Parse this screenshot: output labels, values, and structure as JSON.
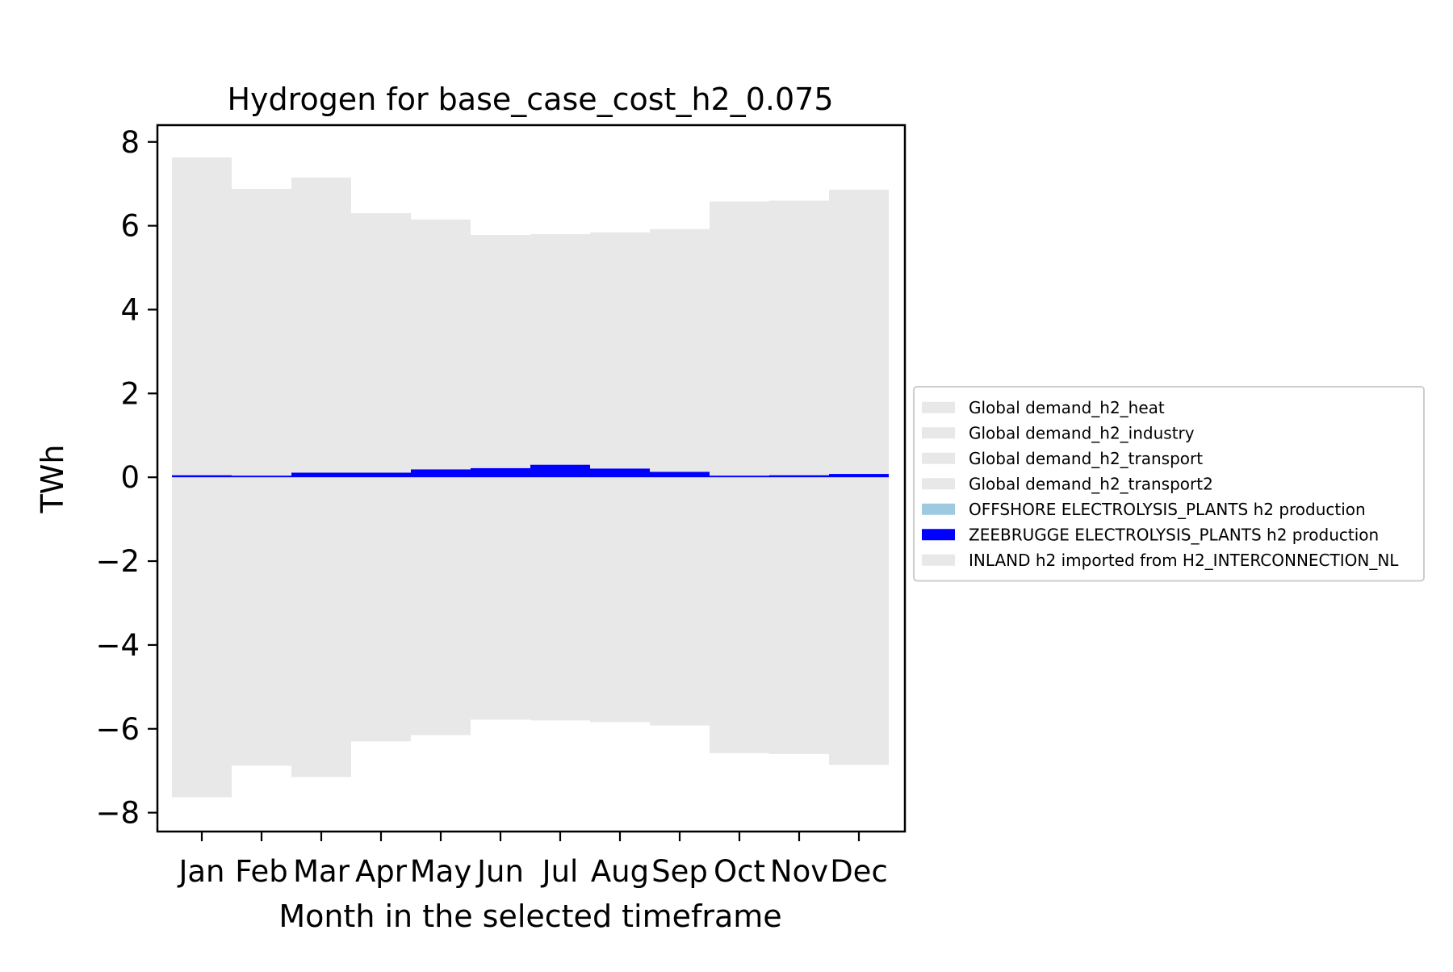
{
  "chart_data": {
    "type": "bar",
    "title": "Hydrogen for base_case_cost_h2_0.075",
    "xlabel": "Month in the selected timeframe",
    "ylabel": "TWh",
    "categories": [
      "Jan",
      "Feb",
      "Mar",
      "Apr",
      "May",
      "Jun",
      "Jul",
      "Aug",
      "Sep",
      "Oct",
      "Nov",
      "Dec"
    ],
    "ylim": [
      -8.45,
      8.4
    ],
    "yticks": [
      8,
      6,
      4,
      2,
      0,
      -2,
      -4,
      -6,
      -8
    ],
    "ytick_labels": [
      "8",
      "6",
      "4",
      "2",
      "0",
      "−2",
      "−4",
      "−6",
      "−8"
    ],
    "grid": false,
    "legend_position": "center-right",
    "series": [
      {
        "name": "Global demand_h2_heat",
        "color": "#e8e8e8",
        "values": [
          0,
          0,
          0,
          0,
          0,
          0,
          0,
          0,
          0,
          0,
          0,
          0
        ]
      },
      {
        "name": "Global demand_h2_industry",
        "color": "#e8e8e8",
        "values": [
          0,
          0,
          0,
          0,
          0,
          0,
          0,
          0,
          0,
          0,
          0,
          0
        ]
      },
      {
        "name": "Global demand_h2_transport",
        "color": "#e8e8e8",
        "values": [
          0,
          0,
          0,
          0,
          0,
          0,
          0,
          0,
          0,
          0,
          0,
          0
        ]
      },
      {
        "name": "Global demand_h2_transport2",
        "color": "#e8e8e8",
        "values": [
          -7.63,
          -6.88,
          -7.15,
          -6.3,
          -6.15,
          -5.78,
          -5.8,
          -5.84,
          -5.92,
          -6.58,
          -6.6,
          -6.86
        ]
      },
      {
        "name": "OFFSHORE ELECTROLYSIS_PLANTS h2 production",
        "color": "#9ecae1",
        "values": [
          0,
          0,
          0,
          0,
          0,
          0,
          0,
          0,
          0,
          0,
          0,
          0
        ]
      },
      {
        "name": "ZEEBRUGGE ELECTROLYSIS_PLANTS h2 production",
        "color": "#0000ff",
        "values": [
          0.05,
          0.04,
          0.11,
          0.11,
          0.19,
          0.22,
          0.3,
          0.21,
          0.13,
          0.04,
          0.05,
          0.08
        ]
      },
      {
        "name": "INLAND h2 imported from H2_INTERCONNECTION_NL",
        "color": "#e8e8e8",
        "values": [
          7.58,
          6.84,
          7.04,
          6.19,
          5.96,
          5.56,
          5.5,
          5.63,
          5.79,
          6.54,
          6.55,
          6.78
        ]
      }
    ]
  }
}
